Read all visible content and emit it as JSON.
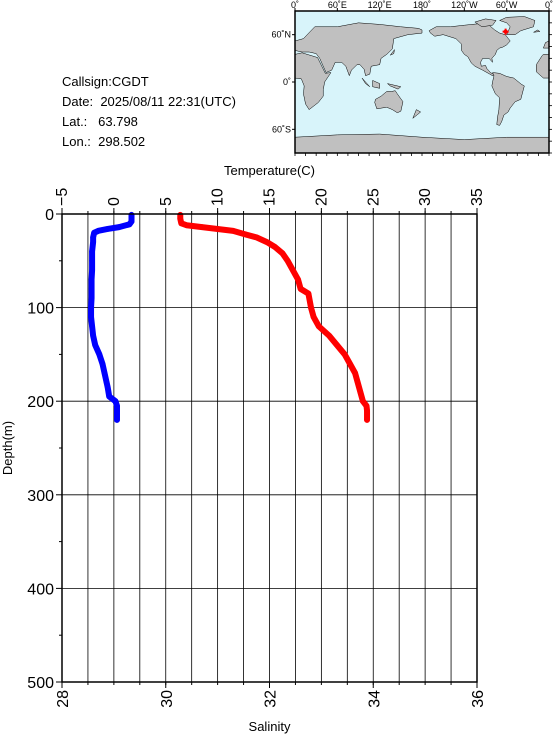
{
  "station": {
    "callsign_label": "Callsign:",
    "callsign": "CGDT",
    "date_label": "Date:",
    "date": "2025/08/11 22:31(UTC)",
    "lat_label": "Lat.:",
    "lat": "63.798",
    "lon_label": "Lon.:",
    "lon": "298.502"
  },
  "map": {
    "lon_ticks": [
      "0˚",
      "60˚E",
      "120˚E",
      "180˚",
      "120˚W",
      "60˚W",
      "0˚"
    ],
    "lat_ticks": [
      "60˚N",
      "0˚",
      "60˚S"
    ],
    "ocean_color": "#d8f4fa",
    "land_color": "#c0c0c0",
    "marker_color": "#ff0000",
    "marker": {
      "lon": 298.502,
      "lat": 63.798
    }
  },
  "chart_data": {
    "type": "line",
    "title": "",
    "ylabel": "Depth(m)",
    "ylim": [
      0,
      500
    ],
    "y_ticks": [
      "0",
      "100",
      "200",
      "300",
      "400",
      "500"
    ],
    "grid": true,
    "temperature_axis": {
      "label": "Temperature(C)",
      "position": "top",
      "range": [
        -5,
        35
      ],
      "ticks": [
        "−5",
        "0",
        "5",
        "10",
        "15",
        "20",
        "25",
        "30",
        "35"
      ]
    },
    "salinity_axis": {
      "label": "Salinity",
      "position": "bottom",
      "range": [
        28,
        36
      ],
      "ticks": [
        "28",
        "30",
        "32",
        "34",
        "36"
      ]
    },
    "series": [
      {
        "axis": "temperature",
        "color": "#0000ff",
        "points": [
          [
            1.7,
            1
          ],
          [
            1.7,
            4
          ],
          [
            1.7,
            8
          ],
          [
            1.5,
            11
          ],
          [
            0.5,
            14
          ],
          [
            -0.6,
            16
          ],
          [
            -1.5,
            18
          ],
          [
            -1.9,
            20
          ],
          [
            -2.0,
            25
          ],
          [
            -2.0,
            30
          ],
          [
            -2.1,
            40
          ],
          [
            -2.1,
            50
          ],
          [
            -2.1,
            60
          ],
          [
            -2.15,
            70
          ],
          [
            -2.15,
            80
          ],
          [
            -2.15,
            90
          ],
          [
            -2.2,
            100
          ],
          [
            -2.2,
            110
          ],
          [
            -2.1,
            120
          ],
          [
            -2.0,
            130
          ],
          [
            -1.8,
            140
          ],
          [
            -1.4,
            150
          ],
          [
            -1.1,
            160
          ],
          [
            -0.9,
            170
          ],
          [
            -0.7,
            180
          ],
          [
            -0.6,
            185
          ],
          [
            -0.45,
            195
          ],
          [
            0.15,
            200
          ],
          [
            0.3,
            205
          ],
          [
            0.3,
            210
          ],
          [
            0.3,
            220
          ]
        ]
      },
      {
        "axis": "salinity",
        "color": "#ff0000",
        "points": [
          [
            30.28,
            1
          ],
          [
            30.28,
            5
          ],
          [
            30.3,
            10
          ],
          [
            30.4,
            12
          ],
          [
            30.7,
            14
          ],
          [
            31.0,
            16
          ],
          [
            31.3,
            18
          ],
          [
            31.55,
            22
          ],
          [
            31.75,
            25
          ],
          [
            31.95,
            30
          ],
          [
            32.1,
            35
          ],
          [
            32.25,
            42
          ],
          [
            32.35,
            50
          ],
          [
            32.45,
            60
          ],
          [
            32.55,
            70
          ],
          [
            32.6,
            80
          ],
          [
            32.75,
            85
          ],
          [
            32.8,
            100
          ],
          [
            32.85,
            110
          ],
          [
            32.95,
            120
          ],
          [
            33.15,
            130
          ],
          [
            33.3,
            140
          ],
          [
            33.45,
            150
          ],
          [
            33.55,
            160
          ],
          [
            33.65,
            170
          ],
          [
            33.7,
            180
          ],
          [
            33.75,
            190
          ],
          [
            33.8,
            200
          ],
          [
            33.87,
            205
          ],
          [
            33.88,
            210
          ],
          [
            33.88,
            220
          ]
        ]
      }
    ]
  }
}
